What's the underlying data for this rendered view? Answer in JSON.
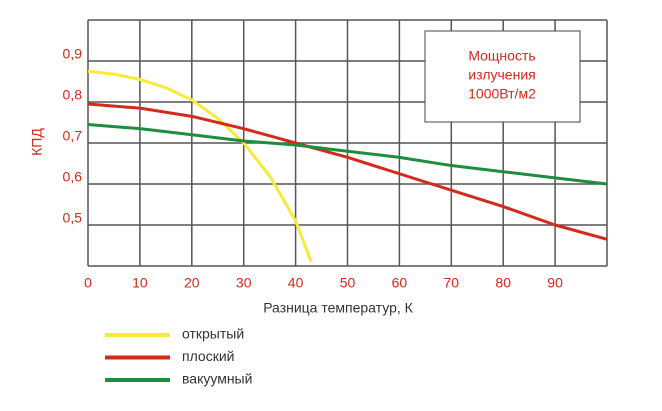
{
  "chart_data": {
    "type": "line",
    "ylabel": "КПД",
    "xlabel": "Разница температур, К",
    "annotation": [
      "Мощность",
      "излучения",
      "1000Вт/м2"
    ],
    "xlim": [
      0,
      100
    ],
    "xticks": [
      0,
      10,
      20,
      30,
      40,
      50,
      60,
      70,
      80,
      90
    ],
    "ylim": [
      0.4,
      1.0
    ],
    "yticks": [
      {
        "value": 0.5,
        "label": "0,5"
      },
      {
        "value": 0.6,
        "label": "0,6"
      },
      {
        "value": 0.7,
        "label": "0,7"
      },
      {
        "value": 0.8,
        "label": "0,8"
      },
      {
        "value": 0.9,
        "label": "0,9"
      }
    ],
    "grid": true,
    "series": [
      {
        "name": "открытый",
        "color": "#f7ea3a",
        "x": [
          0,
          5,
          10,
          15,
          20,
          25,
          30,
          35,
          40,
          43
        ],
        "values": [
          0.875,
          0.868,
          0.855,
          0.835,
          0.805,
          0.76,
          0.7,
          0.62,
          0.51,
          0.41
        ]
      },
      {
        "name": "плоский",
        "color": "#d42a1c",
        "x": [
          0,
          10,
          20,
          30,
          40,
          50,
          60,
          70,
          80,
          90,
          100
        ],
        "values": [
          0.795,
          0.785,
          0.765,
          0.735,
          0.7,
          0.665,
          0.625,
          0.585,
          0.545,
          0.5,
          0.465
        ]
      },
      {
        "name": "вакуумный",
        "color": "#1e8e3e",
        "x": [
          0,
          10,
          20,
          30,
          40,
          50,
          60,
          70,
          80,
          90,
          100
        ],
        "values": [
          0.745,
          0.735,
          0.72,
          0.705,
          0.695,
          0.68,
          0.665,
          0.645,
          0.63,
          0.615,
          0.6
        ]
      }
    ]
  }
}
